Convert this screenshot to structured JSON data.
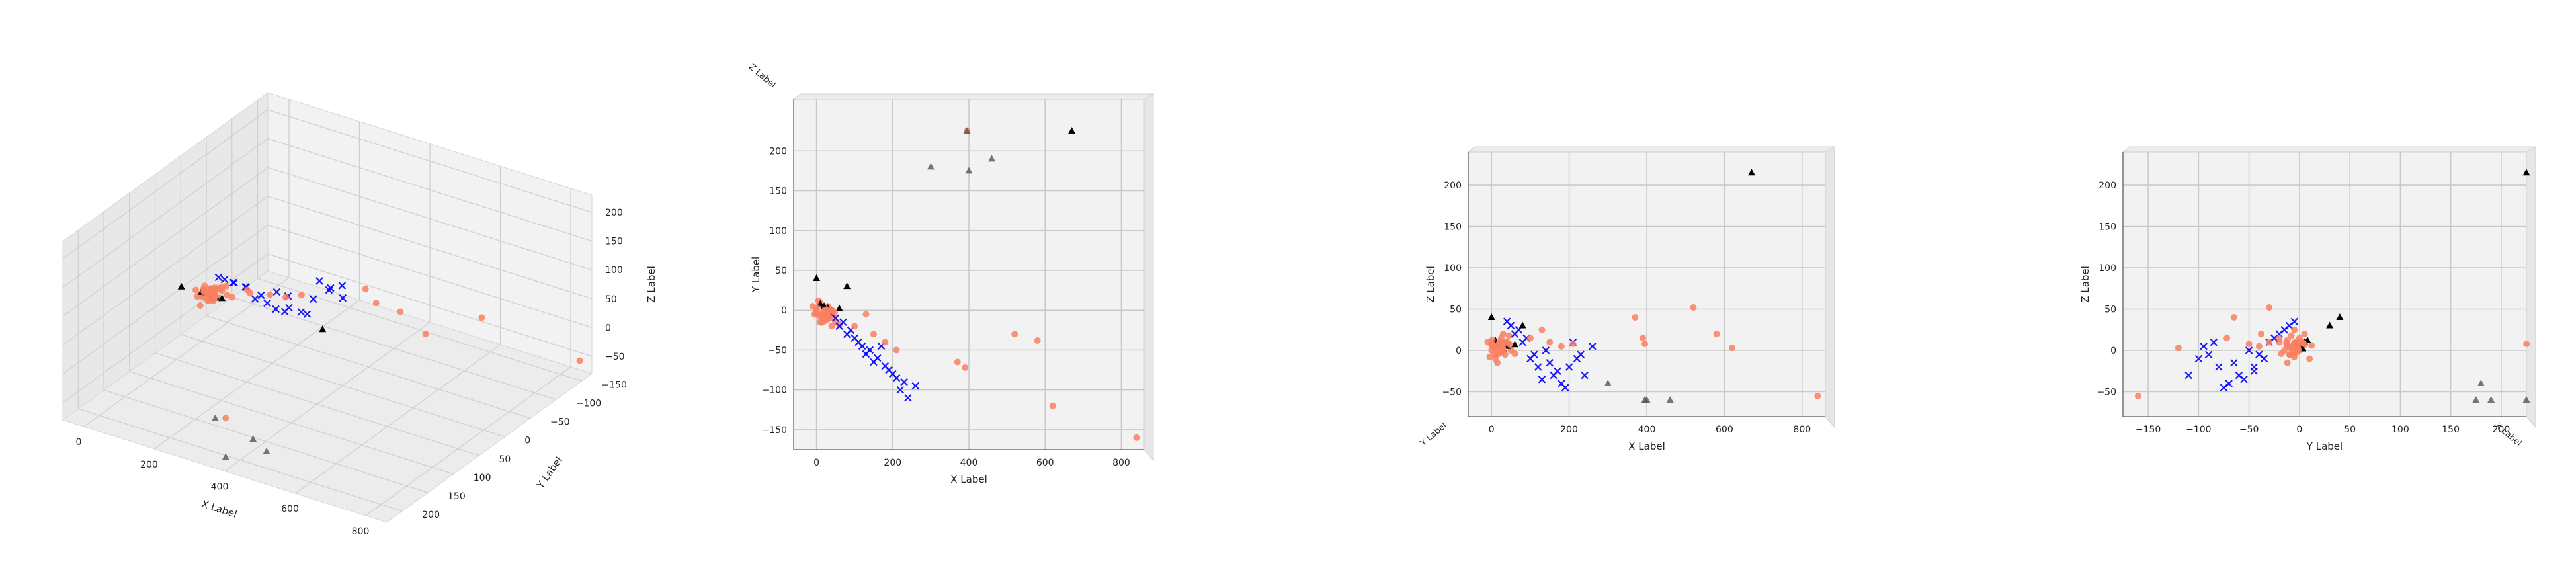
{
  "chart_data": [
    {
      "type": "scatter",
      "view": "perspective",
      "xlabel": "X Label",
      "ylabel": "Y Label",
      "zlabel": "Z Label",
      "xticks": [
        "0",
        "200",
        "400",
        "600",
        "800"
      ],
      "yticks": [
        "−150",
        "−100",
        "−50",
        "0",
        "50",
        "100",
        "150",
        "200"
      ],
      "zticks": [
        "−50",
        "0",
        "50",
        "100",
        "150",
        "200"
      ],
      "xlim": [
        -60,
        860
      ],
      "ylim": [
        -170,
        230
      ],
      "zlim": [
        -80,
        230
      ],
      "grid": true,
      "legend": "none"
    },
    {
      "type": "scatter",
      "view": "top (X–Y)",
      "xlabel": "X Label",
      "ylabel": "Y Label",
      "zlabel": "Z Label",
      "xticks": [
        "0",
        "200",
        "400",
        "600",
        "800"
      ],
      "yticks": [
        "−150",
        "−100",
        "−50",
        "0",
        "50",
        "100",
        "150",
        "200"
      ],
      "xlim": [
        -60,
        860
      ],
      "ylim": [
        -175,
        265
      ],
      "grid": true,
      "legend": "none"
    },
    {
      "type": "scatter",
      "view": "front (X–Z)",
      "xlabel": "X Label",
      "ylabel": "Y Label",
      "zlabel": "Z Label",
      "xticks": [
        "0",
        "200",
        "400",
        "600",
        "800"
      ],
      "zticks": [
        "−50",
        "0",
        "50",
        "100",
        "150",
        "200"
      ],
      "xlim": [
        -60,
        860
      ],
      "zlim": [
        -80,
        240
      ],
      "grid": true,
      "legend": "none"
    },
    {
      "type": "scatter",
      "view": "side (Y–Z)",
      "xlabel": "X Label",
      "ylabel": "Y Label",
      "zlabel": "Z Label",
      "yticks": [
        "−150",
        "−100",
        "−50",
        "0",
        "50",
        "100",
        "150",
        "200"
      ],
      "zticks": [
        "−50",
        "0",
        "50",
        "100",
        "150",
        "200"
      ],
      "ylim": [
        -175,
        225
      ],
      "zlim": [
        -80,
        240
      ],
      "grid": true,
      "legend": "none"
    }
  ],
  "series_style": {
    "coral": "#fa8060",
    "blue": "#0000ff",
    "black": "#000000",
    "gray": "#555555"
  },
  "points": {
    "coral": [
      [
        370,
        -65,
        40
      ],
      [
        390,
        -72,
        15
      ],
      [
        840,
        -160,
        -55
      ],
      [
        520,
        -30,
        52
      ],
      [
        580,
        -38,
        20
      ],
      [
        620,
        -120,
        3
      ],
      [
        100,
        -20,
        15
      ],
      [
        150,
        -30,
        10
      ],
      [
        180,
        -40,
        5
      ],
      [
        210,
        -50,
        8
      ],
      [
        395,
        225,
        8
      ],
      [
        130,
        -5,
        25
      ]
    ],
    "blue": [
      [
        60,
        -20,
        20
      ],
      [
        80,
        -30,
        10
      ],
      [
        100,
        -35,
        -10
      ],
      [
        120,
        -45,
        -20
      ],
      [
        140,
        -50,
        0
      ],
      [
        160,
        -60,
        -30
      ],
      [
        180,
        -70,
        -40
      ],
      [
        200,
        -80,
        -20
      ],
      [
        220,
        -100,
        -10
      ],
      [
        240,
        -110,
        -30
      ],
      [
        260,
        -95,
        5
      ],
      [
        90,
        -25,
        15
      ],
      [
        110,
        -40,
        -5
      ],
      [
        70,
        -15,
        25
      ],
      [
        130,
        -55,
        -35
      ],
      [
        150,
        -65,
        -15
      ],
      [
        170,
        -45,
        -25
      ],
      [
        190,
        -75,
        -45
      ],
      [
        210,
        -85,
        10
      ],
      [
        230,
        -90,
        -5
      ],
      [
        50,
        -10,
        30
      ],
      [
        40,
        -5,
        35
      ]
    ],
    "black": [
      [
        670,
        225,
        215
      ],
      [
        0,
        40,
        40
      ],
      [
        80,
        30,
        30
      ],
      [
        20,
        5,
        10
      ],
      [
        40,
        0,
        5
      ],
      [
        10,
        8,
        12
      ],
      [
        30,
        3,
        2
      ],
      [
        60,
        2,
        7
      ]
    ],
    "gray": [
      [
        395,
        225,
        -60
      ],
      [
        400,
        175,
        -60
      ],
      [
        460,
        190,
        -60
      ],
      [
        300,
        180,
        -40
      ]
    ],
    "cluster": [
      [
        0,
        0,
        0
      ],
      [
        20,
        -5,
        5
      ],
      [
        35,
        -10,
        -5
      ],
      [
        -10,
        5,
        10
      ],
      [
        10,
        10,
        -10
      ],
      [
        50,
        -15,
        0
      ],
      [
        25,
        0,
        15
      ],
      [
        40,
        -20,
        10
      ],
      [
        -5,
        -5,
        -8
      ],
      [
        30,
        5,
        20
      ],
      [
        15,
        -12,
        -15
      ],
      [
        45,
        -8,
        18
      ],
      [
        60,
        -18,
        -4
      ],
      [
        5,
        12,
        6
      ]
    ]
  }
}
